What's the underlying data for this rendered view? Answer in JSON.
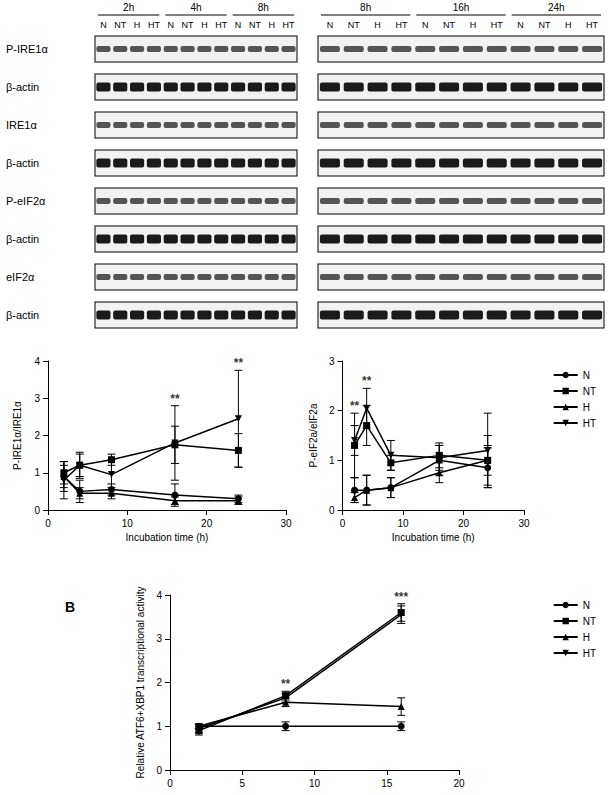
{
  "blot": {
    "rows": [
      "P-IRE1α",
      "β-actin",
      "IRE1α",
      "β-actin",
      "P-eIF2α",
      "β-actin",
      "eIF2α",
      "β-actin"
    ],
    "panels": [
      {
        "times": [
          "2h",
          "4h",
          "8h"
        ],
        "lanes": [
          "N",
          "NT",
          "H",
          "HT"
        ]
      },
      {
        "times": [
          "8h",
          "16h",
          "24h"
        ],
        "lanes": [
          "N",
          "NT",
          "H",
          "HT"
        ]
      }
    ]
  },
  "chart_data": [
    {
      "type": "line",
      "x_label": "Incubation time (h)",
      "y_label": "P-IRE1α/IRE1α",
      "x": [
        2,
        4,
        8,
        16,
        24
      ],
      "xlim": [
        0,
        30
      ],
      "xticks": [
        0,
        10,
        20,
        30
      ],
      "ylim": [
        0,
        4
      ],
      "yticks": [
        0,
        1,
        2,
        3,
        4
      ],
      "grid": false,
      "series": [
        {
          "name": "N",
          "color": "#000000",
          "marker": "circle",
          "values": [
            0.9,
            0.5,
            0.55,
            0.4,
            0.3
          ],
          "errors": [
            0.4,
            0.3,
            0.15,
            0.3,
            0.1
          ]
        },
        {
          "name": "NT",
          "color": "#000000",
          "marker": "square",
          "values": [
            1.0,
            1.2,
            1.35,
            1.75,
            1.6
          ],
          "errors": [
            0.3,
            0.35,
            0.15,
            0.5,
            0.45
          ]
        },
        {
          "name": "H",
          "color": "#000000",
          "marker": "triangle",
          "values": [
            0.9,
            0.45,
            0.45,
            0.25,
            0.25
          ],
          "errors": [
            0.3,
            0.15,
            0.15,
            0.1,
            0.1
          ]
        },
        {
          "name": "HT",
          "color": "#000000",
          "marker": "triangle_down",
          "values": [
            0.8,
            1.2,
            0.95,
            1.8,
            2.45
          ],
          "errors": [
            0.5,
            0.3,
            0.4,
            1.0,
            1.3
          ]
        }
      ],
      "annotations": [
        {
          "text": "**",
          "x": 16
        },
        {
          "text": "**",
          "x": 24
        }
      ]
    },
    {
      "type": "line",
      "x_label": "Incubation time (h)",
      "y_label": "P-eIF2a/eIF2a",
      "x": [
        2,
        4,
        8,
        16,
        24
      ],
      "xlim": [
        0,
        30
      ],
      "xticks": [
        0,
        10,
        20,
        30
      ],
      "ylim": [
        0,
        3
      ],
      "yticks": [
        0,
        1,
        2,
        3
      ],
      "grid": false,
      "legend": "right",
      "series": [
        {
          "name": "N",
          "color": "#000000",
          "marker": "circle",
          "values": [
            0.4,
            0.4,
            0.45,
            1.0,
            0.85
          ],
          "errors": [
            0.25,
            0.3,
            0.2,
            0.3,
            0.4
          ]
        },
        {
          "name": "NT",
          "color": "#000000",
          "marker": "square",
          "values": [
            1.3,
            1.7,
            0.95,
            1.1,
            1.0
          ],
          "errors": [
            0.65,
            0.4,
            0.15,
            0.25,
            0.3
          ]
        },
        {
          "name": "H",
          "color": "#000000",
          "marker": "triangle",
          "values": [
            0.25,
            0.4,
            0.45,
            0.75,
            1.0
          ],
          "errors": [
            0.1,
            0.3,
            0.2,
            0.2,
            0.5
          ]
        },
        {
          "name": "HT",
          "color": "#000000",
          "marker": "triangle_down",
          "values": [
            1.4,
            2.05,
            1.1,
            1.05,
            1.2
          ],
          "errors": [
            0.3,
            0.4,
            0.3,
            0.25,
            0.75
          ]
        }
      ],
      "annotations": [
        {
          "text": "**",
          "x": 2
        },
        {
          "text": "**",
          "x": 4
        }
      ]
    },
    {
      "type": "line",
      "title": "B",
      "y_label": "Relative ATF6+XBP1 transcriptional activity",
      "x": [
        2,
        8,
        16
      ],
      "xlim": [
        0,
        20
      ],
      "xticks": [
        0,
        5,
        10,
        15,
        20
      ],
      "ylim": [
        0,
        4
      ],
      "yticks": [
        0,
        1,
        2,
        3,
        4
      ],
      "grid": false,
      "legend": "right",
      "series": [
        {
          "name": "N",
          "color": "#000000",
          "marker": "circle",
          "values": [
            1.0,
            1.0,
            1.0
          ],
          "errors": [
            0.05,
            0.1,
            0.1
          ]
        },
        {
          "name": "NT",
          "color": "#000000",
          "marker": "square",
          "values": [
            0.9,
            1.7,
            3.6
          ],
          "errors": [
            0.1,
            0.1,
            0.2
          ]
        },
        {
          "name": "H",
          "color": "#000000",
          "marker": "triangle",
          "values": [
            1.0,
            1.55,
            1.45
          ],
          "errors": [
            0.05,
            0.1,
            0.2
          ]
        },
        {
          "name": "HT",
          "color": "#000000",
          "marker": "triangle_down",
          "values": [
            0.95,
            1.65,
            3.55
          ],
          "errors": [
            0.1,
            0.1,
            0.2
          ]
        }
      ],
      "annotations": [
        {
          "text": "**",
          "x": 8
        },
        {
          "text": "***",
          "x": 16
        }
      ]
    }
  ]
}
